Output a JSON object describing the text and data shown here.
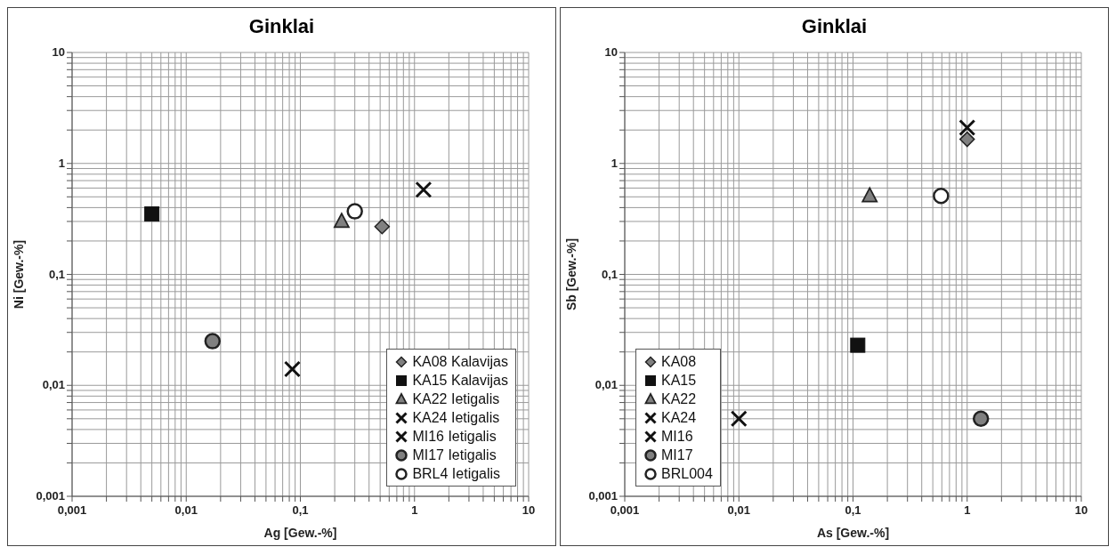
{
  "chart_data": [
    {
      "type": "scatter",
      "title": "Ginklai",
      "xlabel": "Ag [Gew.-%]",
      "ylabel": "Ni [Gew.-%]",
      "log": "xy",
      "grid": true,
      "legend": "bottom right",
      "xlim": [
        0.001,
        10
      ],
      "ylim": [
        0.001,
        10
      ],
      "xticks": [
        {
          "value": 0.001,
          "label": "0,001"
        },
        {
          "value": 0.002,
          "label": null
        },
        {
          "value": 0.003,
          "label": null
        },
        {
          "value": 0.004,
          "label": null
        },
        {
          "value": 0.005,
          "label": null
        },
        {
          "value": 0.006,
          "label": null
        },
        {
          "value": 0.007,
          "label": null
        },
        {
          "value": 0.008,
          "label": null
        },
        {
          "value": 0.009,
          "label": null
        },
        {
          "value": 0.01,
          "label": "0,01"
        },
        {
          "value": 0.02,
          "label": null
        },
        {
          "value": 0.03,
          "label": null
        },
        {
          "value": 0.04,
          "label": null
        },
        {
          "value": 0.05,
          "label": null
        },
        {
          "value": 0.06,
          "label": null
        },
        {
          "value": 0.07,
          "label": null
        },
        {
          "value": 0.08,
          "label": null
        },
        {
          "value": 0.09,
          "label": null
        },
        {
          "value": 0.1,
          "label": "0,1"
        },
        {
          "value": 0.2,
          "label": null
        },
        {
          "value": 0.3,
          "label": null
        },
        {
          "value": 0.4,
          "label": null
        },
        {
          "value": 0.5,
          "label": null
        },
        {
          "value": 0.6,
          "label": null
        },
        {
          "value": 0.7,
          "label": null
        },
        {
          "value": 0.8,
          "label": null
        },
        {
          "value": 0.9,
          "label": null
        },
        {
          "value": 1,
          "label": "1"
        },
        {
          "value": 2,
          "label": null
        },
        {
          "value": 3,
          "label": null
        },
        {
          "value": 4,
          "label": null
        },
        {
          "value": 5,
          "label": null
        },
        {
          "value": 6,
          "label": null
        },
        {
          "value": 7,
          "label": null
        },
        {
          "value": 8,
          "label": null
        },
        {
          "value": 9,
          "label": null
        },
        {
          "value": 10,
          "label": "10"
        }
      ],
      "yticks": [
        {
          "value": 0.001,
          "label": "0,001"
        },
        {
          "value": 0.002,
          "label": null
        },
        {
          "value": 0.003,
          "label": null
        },
        {
          "value": 0.004,
          "label": null
        },
        {
          "value": 0.005,
          "label": null
        },
        {
          "value": 0.006,
          "label": null
        },
        {
          "value": 0.007,
          "label": null
        },
        {
          "value": 0.008,
          "label": null
        },
        {
          "value": 0.009,
          "label": null
        },
        {
          "value": 0.01,
          "label": "0,01"
        },
        {
          "value": 0.02,
          "label": null
        },
        {
          "value": 0.03,
          "label": null
        },
        {
          "value": 0.04,
          "label": null
        },
        {
          "value": 0.05,
          "label": null
        },
        {
          "value": 0.06,
          "label": null
        },
        {
          "value": 0.07,
          "label": null
        },
        {
          "value": 0.08,
          "label": null
        },
        {
          "value": 0.09,
          "label": null
        },
        {
          "value": 0.1,
          "label": "0,1"
        },
        {
          "value": 0.2,
          "label": null
        },
        {
          "value": 0.3,
          "label": null
        },
        {
          "value": 0.4,
          "label": null
        },
        {
          "value": 0.5,
          "label": null
        },
        {
          "value": 0.6,
          "label": null
        },
        {
          "value": 0.7,
          "label": null
        },
        {
          "value": 0.8,
          "label": null
        },
        {
          "value": 0.9,
          "label": null
        },
        {
          "value": 1,
          "label": "1"
        },
        {
          "value": 2,
          "label": null
        },
        {
          "value": 3,
          "label": null
        },
        {
          "value": 4,
          "label": null
        },
        {
          "value": 5,
          "label": null
        },
        {
          "value": 6,
          "label": null
        },
        {
          "value": 7,
          "label": null
        },
        {
          "value": 8,
          "label": null
        },
        {
          "value": 9,
          "label": null
        },
        {
          "value": 10,
          "label": "10"
        }
      ],
      "series": [
        {
          "name": "KA08 Kalavijas",
          "color": "#808080",
          "marker": "diamond",
          "x": [
            0.52
          ],
          "values": [
            0.27
          ]
        },
        {
          "name": "KA15 Kalavijas",
          "color": "#111111",
          "marker": "square",
          "x": [
            0.005
          ],
          "values": [
            0.35
          ]
        },
        {
          "name": "KA22 Ietigalis",
          "color": "#808080",
          "marker": "triangle",
          "x": [
            0.23
          ],
          "values": [
            0.3
          ]
        },
        {
          "name": "KA24 Ietigalis",
          "color": "#111111",
          "marker": "cross",
          "x": [
            1.2
          ],
          "values": [
            0.58
          ]
        },
        {
          "name": "MI16 Ietigalis",
          "color": "#111111",
          "marker": "cross",
          "x": [
            0.085
          ],
          "values": [
            0.014
          ]
        },
        {
          "name": "MI17 Ietigalis",
          "color": "#808080",
          "marker": "circle",
          "x": [
            0.017
          ],
          "values": [
            0.025
          ]
        },
        {
          "name": "BRL4 Ietigalis",
          "color": "#ffffff",
          "marker": "circle",
          "x": [
            0.3
          ],
          "values": [
            0.37
          ]
        }
      ]
    },
    {
      "type": "scatter",
      "title": "Ginklai",
      "xlabel": "As [Gew.-%]",
      "ylabel": "Sb [Gew.-%]",
      "log": "xy",
      "grid": true,
      "legend": "bottom left",
      "xlim": [
        0.001,
        10
      ],
      "ylim": [
        0.001,
        10
      ],
      "xticks": [
        {
          "value": 0.001,
          "label": "0,001"
        },
        {
          "value": 0.002,
          "label": null
        },
        {
          "value": 0.003,
          "label": null
        },
        {
          "value": 0.004,
          "label": null
        },
        {
          "value": 0.005,
          "label": null
        },
        {
          "value": 0.006,
          "label": null
        },
        {
          "value": 0.007,
          "label": null
        },
        {
          "value": 0.008,
          "label": null
        },
        {
          "value": 0.009,
          "label": null
        },
        {
          "value": 0.01,
          "label": "0,01"
        },
        {
          "value": 0.02,
          "label": null
        },
        {
          "value": 0.03,
          "label": null
        },
        {
          "value": 0.04,
          "label": null
        },
        {
          "value": 0.05,
          "label": null
        },
        {
          "value": 0.06,
          "label": null
        },
        {
          "value": 0.07,
          "label": null
        },
        {
          "value": 0.08,
          "label": null
        },
        {
          "value": 0.09,
          "label": null
        },
        {
          "value": 0.1,
          "label": "0,1"
        },
        {
          "value": 0.2,
          "label": null
        },
        {
          "value": 0.3,
          "label": null
        },
        {
          "value": 0.4,
          "label": null
        },
        {
          "value": 0.5,
          "label": null
        },
        {
          "value": 0.6,
          "label": null
        },
        {
          "value": 0.7,
          "label": null
        },
        {
          "value": 0.8,
          "label": null
        },
        {
          "value": 0.9,
          "label": null
        },
        1,
        {
          "value": 2,
          "label": null
        },
        {
          "value": 3,
          "label": null
        },
        {
          "value": 4,
          "label": null
        },
        {
          "value": 5,
          "label": null
        },
        {
          "value": 6,
          "label": null
        },
        {
          "value": 7,
          "label": null
        },
        {
          "value": 8,
          "label": null
        },
        {
          "value": 9,
          "label": null
        },
        10
      ],
      "yticks": [
        {
          "value": 0.001,
          "label": "0,001"
        },
        {
          "value": 0.002,
          "label": null
        },
        {
          "value": 0.003,
          "label": null
        },
        {
          "value": 0.004,
          "label": null
        },
        {
          "value": 0.005,
          "label": null
        },
        {
          "value": 0.006,
          "label": null
        },
        {
          "value": 0.007,
          "label": null
        },
        {
          "value": 0.008,
          "label": null
        },
        {
          "value": 0.009,
          "label": null
        },
        {
          "value": 0.01,
          "label": "0,01"
        },
        {
          "value": 0.02,
          "label": null
        },
        {
          "value": 0.03,
          "label": null
        },
        {
          "value": 0.04,
          "label": null
        },
        {
          "value": 0.05,
          "label": null
        },
        {
          "value": 0.06,
          "label": null
        },
        {
          "value": 0.07,
          "label": null
        },
        {
          "value": 0.08,
          "label": null
        },
        {
          "value": 0.09,
          "label": null
        },
        {
          "value": 0.1,
          "label": "0,1"
        },
        {
          "value": 0.2,
          "label": null
        },
        {
          "value": 0.3,
          "label": null
        },
        {
          "value": 0.4,
          "label": null
        },
        {
          "value": 0.5,
          "label": null
        },
        {
          "value": 0.6,
          "label": null
        },
        {
          "value": 0.7,
          "label": null
        },
        {
          "value": 0.8,
          "label": null
        },
        {
          "value": 0.9,
          "label": null
        },
        1,
        {
          "value": 2,
          "label": null
        },
        {
          "value": 3,
          "label": null
        },
        {
          "value": 4,
          "label": null
        },
        {
          "value": 5,
          "label": null
        },
        {
          "value": 6,
          "label": null
        },
        {
          "value": 7,
          "label": null
        },
        {
          "value": 8,
          "label": null
        },
        {
          "value": 9,
          "label": null
        },
        10
      ],
      "series": [
        {
          "name": "KA08",
          "color": "#808080",
          "marker": "diamond",
          "x": [
            1.0
          ],
          "values": [
            1.65
          ]
        },
        {
          "name": "KA15",
          "color": "#111111",
          "marker": "square",
          "x": [
            0.11
          ],
          "values": [
            0.023
          ]
        },
        {
          "name": "KA22",
          "color": "#808080",
          "marker": "triangle",
          "x": [
            0.14
          ],
          "values": [
            0.51
          ]
        },
        {
          "name": "KA24",
          "color": "#111111",
          "marker": "cross",
          "x": [
            1.0
          ],
          "values": [
            2.1
          ]
        },
        {
          "name": "MI16",
          "color": "#111111",
          "marker": "cross",
          "x": [
            0.01
          ],
          "values": [
            0.005
          ]
        },
        {
          "name": "MI17",
          "color": "#808080",
          "marker": "circle",
          "x": [
            1.32
          ],
          "values": [
            0.005
          ]
        },
        {
          "name": "BRL004",
          "color": "#ffffff",
          "marker": "circle",
          "x": [
            0.59
          ],
          "values": [
            0.51
          ]
        }
      ]
    }
  ]
}
